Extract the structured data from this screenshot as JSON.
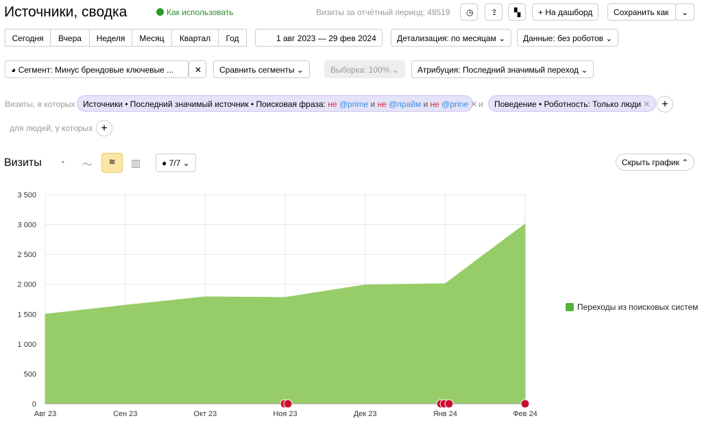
{
  "header": {
    "title": "Источники, сводка",
    "help": "Как использовать",
    "visits_label": "Визиты за отчётный период:",
    "visits_total": 48519,
    "dashboard": "На дашборд",
    "save": "Сохранить как"
  },
  "periods": [
    "Сегодня",
    "Вчера",
    "Неделя",
    "Месяц",
    "Квартал",
    "Год"
  ],
  "date_range": "1 авг 2023 — 29 фев 2024",
  "detail": "Детализация: по месяцам",
  "data_filter": "Данные: без роботов",
  "segment": "Сегмент: Минус брендовые ключевые ...",
  "compare": "Сравнить сегменты",
  "sample": "Выборка: 100%",
  "attribution": "Атрибуция: Последний значимый переход",
  "filters": {
    "visits_label": "Визиты, в которых",
    "chip1": {
      "prefix": "Источники • Последний значимый источник • Поисковая фраза:",
      "negation": "не",
      "joiner": "и",
      "terms": [
        "@prime",
        "@прайм",
        "@prine"
      ]
    },
    "and": "и",
    "chip2": "Поведение • Роботность: Только люди",
    "people_label": "для людей, у которых"
  },
  "chart_header": {
    "title": "Визиты",
    "series_count": "7/7",
    "hide": "Скрыть график"
  },
  "chart_data": {
    "type": "area",
    "categories": [
      "Авг 23",
      "Сен 23",
      "Окт 23",
      "Ноя 23",
      "Дек 23",
      "Янв 24",
      "Фев 24"
    ],
    "series": [
      {
        "name": "Переходы из поисковых систем",
        "color": "#97cd68",
        "values": [
          1500,
          1650,
          1790,
          1780,
          1990,
          2010,
          3010
        ]
      }
    ],
    "ylim": [
      0,
      3500
    ],
    "yticks": [
      0,
      500,
      {
        "value": 1000,
        "label": "1 000"
      },
      {
        "value": 1500,
        "label": "1 500"
      },
      {
        "value": 2000,
        "label": "2 000"
      },
      {
        "value": 2500,
        "label": "2 500"
      },
      {
        "value": 3000,
        "label": "3 000"
      },
      {
        "value": 3500,
        "label": "3 500"
      }
    ],
    "grid": true
  }
}
